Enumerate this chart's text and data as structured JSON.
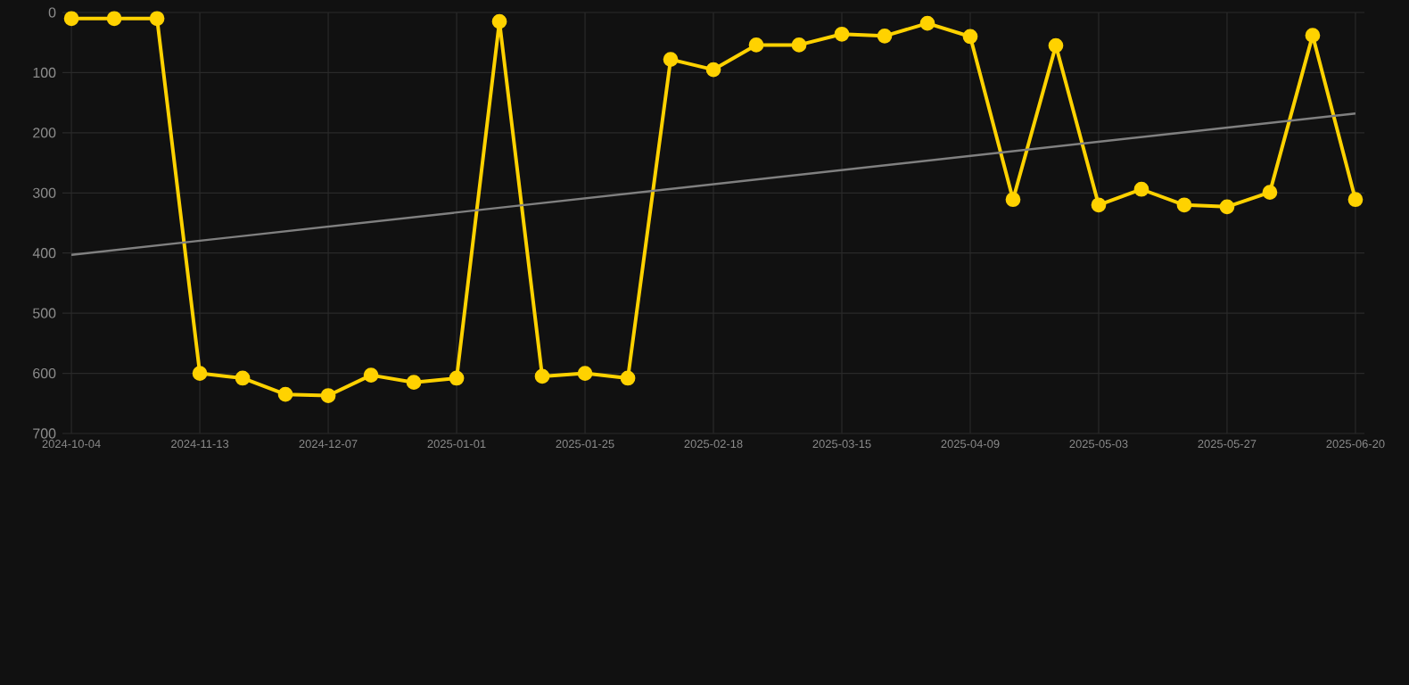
{
  "chart_data": {
    "type": "line",
    "categories": [
      "2024-10-04",
      null,
      null,
      "2024-11-13",
      null,
      null,
      "2024-12-07",
      null,
      null,
      "2025-01-01",
      null,
      null,
      "2025-01-25",
      null,
      null,
      "2025-02-18",
      null,
      null,
      "2025-03-15",
      null,
      null,
      "2025-04-09",
      null,
      null,
      "2025-05-03",
      null,
      null,
      "2025-05-27",
      null,
      null,
      "2025-06-20"
    ],
    "series": [
      {
        "color": "#ffd200",
        "marker": "circle",
        "values": [
          10,
          10,
          10,
          600,
          608,
          635,
          637,
          603,
          615,
          608,
          15,
          605,
          600,
          608,
          78,
          95,
          54,
          54,
          36,
          39,
          18,
          40,
          311,
          55,
          320,
          294,
          320,
          323,
          299,
          38,
          311
        ]
      },
      {
        "type": "line",
        "color": "#808080",
        "marker": "none",
        "values": [
          403,
          null,
          null,
          null,
          null,
          null,
          null,
          null,
          null,
          null,
          null,
          null,
          null,
          null,
          null,
          null,
          null,
          null,
          null,
          null,
          null,
          null,
          null,
          null,
          null,
          null,
          null,
          null,
          null,
          null,
          168
        ]
      }
    ],
    "ylim": [
      700,
      0
    ],
    "yticks": [
      0,
      100,
      200,
      300,
      400,
      500,
      600,
      700
    ],
    "grid": true,
    "line_style": "solid"
  }
}
